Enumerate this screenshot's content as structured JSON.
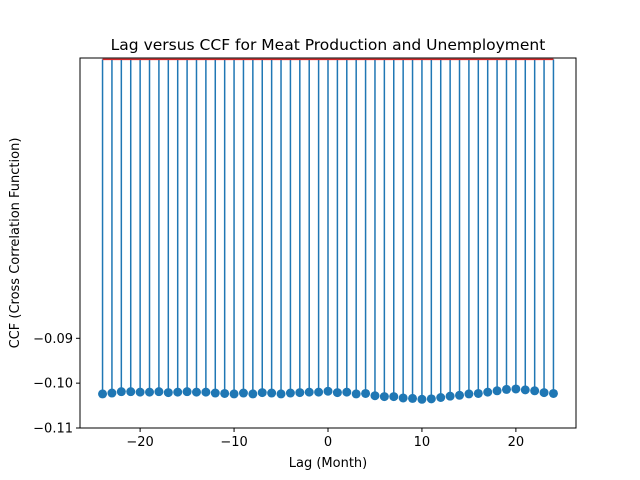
{
  "chart_data": {
    "type": "stem",
    "title": "Lag versus CCF for Meat Production and Unemployment",
    "xlabel": "Lag (Month)",
    "ylabel": "CCF (Cross Correlation Function)",
    "xlim": [
      -26.4,
      26.4
    ],
    "ylim": [
      -0.11,
      -0.0275
    ],
    "baseline": -0.0278,
    "xticks": [
      -20,
      -10,
      0,
      10,
      20
    ],
    "xtick_labels": [
      "−20",
      "−10",
      "0",
      "10",
      "20"
    ],
    "yticks": [
      -0.09,
      -0.1,
      -0.11
    ],
    "ytick_labels": [
      "−0.09",
      "−0.10",
      "−0.11"
    ],
    "grid": false,
    "colors": {
      "stem": "#1f77b4",
      "marker": "#1f77b4",
      "baseline": "#d62728"
    },
    "x": [
      -24,
      -23,
      -22,
      -21,
      -20,
      -19,
      -18,
      -17,
      -16,
      -15,
      -14,
      -13,
      -12,
      -11,
      -10,
      -9,
      -8,
      -7,
      -6,
      -5,
      -4,
      -3,
      -2,
      -1,
      0,
      1,
      2,
      3,
      4,
      5,
      6,
      7,
      8,
      9,
      10,
      11,
      12,
      13,
      14,
      15,
      16,
      17,
      18,
      19,
      20,
      21,
      22,
      23,
      24
    ],
    "values": [
      -0.1024,
      -0.1022,
      -0.1019,
      -0.1019,
      -0.102,
      -0.102,
      -0.1019,
      -0.1021,
      -0.102,
      -0.1019,
      -0.102,
      -0.102,
      -0.1022,
      -0.1023,
      -0.1024,
      -0.1022,
      -0.1024,
      -0.1021,
      -0.1022,
      -0.1024,
      -0.1022,
      -0.1021,
      -0.102,
      -0.102,
      -0.1018,
      -0.1021,
      -0.102,
      -0.1024,
      -0.1023,
      -0.1028,
      -0.103,
      -0.103,
      -0.1033,
      -0.1034,
      -0.1036,
      -0.1035,
      -0.1032,
      -0.1029,
      -0.1027,
      -0.1024,
      -0.1023,
      -0.102,
      -0.1017,
      -0.1014,
      -0.1013,
      -0.1015,
      -0.1017,
      -0.1021,
      -0.1023
    ]
  }
}
